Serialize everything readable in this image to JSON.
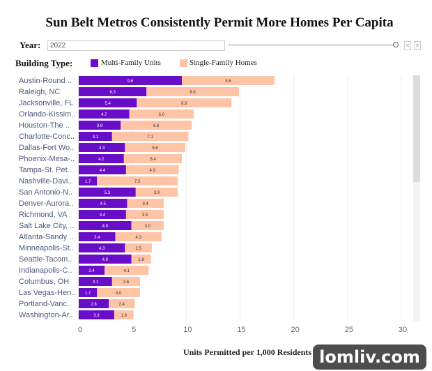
{
  "chart_data": {
    "type": "bar",
    "orientation": "horizontal",
    "stacked": true,
    "title": "Sun Belt Metros Consistently Permit More Homes Per Capita",
    "xlabel": "Units Permitted per 1,000 Residents",
    "xlim": [
      0,
      31.5
    ],
    "xticks": [
      0,
      5,
      10,
      15,
      20,
      25,
      30
    ],
    "grid": true,
    "legend_title": "Building Type:",
    "legend_position": "top-left",
    "categories": [
      "Austin-Round ..",
      "Raleigh, NC",
      "Jacksonville, FL",
      "Orlando-Kissim..",
      "Houston-The ..",
      "Charlotte-Conc..",
      "Dallas-Fort Wo..",
      "Phoenix-Mesa-..",
      "Tampa-St. Pet..",
      "Nashville-Davi..",
      "San Antonio-N..",
      "Denver-Aurora..",
      "Richmond, VA",
      "Salt Lake City, ..",
      "Atlanta-Sandy ..",
      "Minneapolis-St..",
      "Seattle-Tacom..",
      "Indianapolis-C..",
      "Columbus, OH",
      "Las Vegas-Hen..",
      "Portland-Vanc..",
      "Washington-Ar.."
    ],
    "series": [
      {
        "name": "Multi-Family Units",
        "color": "#6a0dc9",
        "values": [
          9.6,
          6.3,
          5.4,
          4.7,
          3.9,
          3.1,
          4.3,
          4.2,
          4.4,
          1.7,
          5.3,
          4.5,
          4.4,
          4.9,
          3.4,
          4.3,
          4.9,
          2.4,
          3.1,
          1.7,
          2.8,
          3.3
        ]
      },
      {
        "name": "Single-Family Homes",
        "color": "#ffc3a6",
        "values": [
          8.6,
          8.6,
          8.8,
          6.0,
          6.6,
          7.1,
          5.6,
          5.4,
          4.9,
          7.5,
          3.9,
          3.4,
          3.5,
          3.0,
          4.3,
          2.5,
          1.8,
          4.1,
          2.6,
          4.0,
          2.4,
          1.8
        ]
      }
    ]
  },
  "controls": {
    "year_label": "Year:",
    "year_value": "2022",
    "prev": "<",
    "next": ">"
  },
  "watermark": "lomliv.com"
}
